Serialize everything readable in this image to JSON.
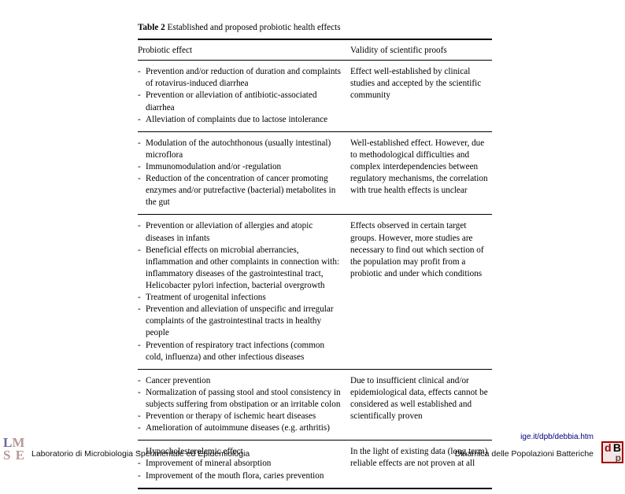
{
  "table": {
    "title_bold": "Table 2",
    "title_rest": " Established and proposed probiotic health effects",
    "header_left": "Probiotic effect",
    "header_right": "Validity of scientific proofs",
    "sections": [
      {
        "left_items": [
          "Prevention and/or reduction of duration and complaints of rotavirus-induced diarrhea",
          "Prevention or alleviation of antibiotic-associated diarrhea",
          "Alleviation of complaints due to lactose intolerance"
        ],
        "right": "Effect well-established by clinical studies and accepted by the scientific community"
      },
      {
        "left_items": [
          "Modulation of the autochthonous (usually intestinal) microflora",
          "Immunomodulation and/or -regulation",
          "Reduction of the concentration of cancer promoting enzymes and/or putrefactive (bacterial) metabolites in the gut"
        ],
        "right": "Well-established effect. However, due to methodological difficulties and complex interdependencies between regulatory mechanisms, the correlation with true health effects is unclear"
      },
      {
        "left_items": [
          "Prevention or alleviation of allergies and atopic diseases in infants",
          "Beneficial effects on microbial aberrancies, inflammation and other complaints in connection with: inflammatory diseases of the gastrointestinal tract, Helicobacter pylori infection, bacterial overgrowth",
          "Treatment of urogenital infections",
          "Prevention and alleviation of unspecific and irregular complaints of the gastrointestinal tracts in healthy people",
          "Prevention of respiratory tract infections (common cold, influenza) and other infectious diseases"
        ],
        "right": "Effects observed in certain target groups. However, more studies are necessary to find out which section of the population may profit from a probiotic and under which conditions"
      },
      {
        "left_items": [
          "Cancer prevention",
          "Normalization of passing stool and stool consistency in subjects suffering from obstipation or an irritable colon",
          "Prevention or therapy of ischemic heart diseases",
          "Amelioration of autoimmune diseases (e.g. arthritis)"
        ],
        "right": "Due to insufficient clinical and/or epidemiological data, effects cannot be considered as well established and scientifically proven"
      },
      {
        "left_items": [
          "Hypocholesterolemic effect",
          "Improvement of mineral absorption",
          "Improvement of the mouth flora, caries prevention"
        ],
        "right": "In the light of existing data (long term) reliable effects are not proven at all"
      }
    ]
  },
  "footer": {
    "url": "ige.it/dpb/debbia.htm",
    "left_text": "Laboratorio di Microbiologia Sperimentale ed Epidemiologia",
    "right_text": "Dinamica delle Popolazioni Batteriche"
  }
}
